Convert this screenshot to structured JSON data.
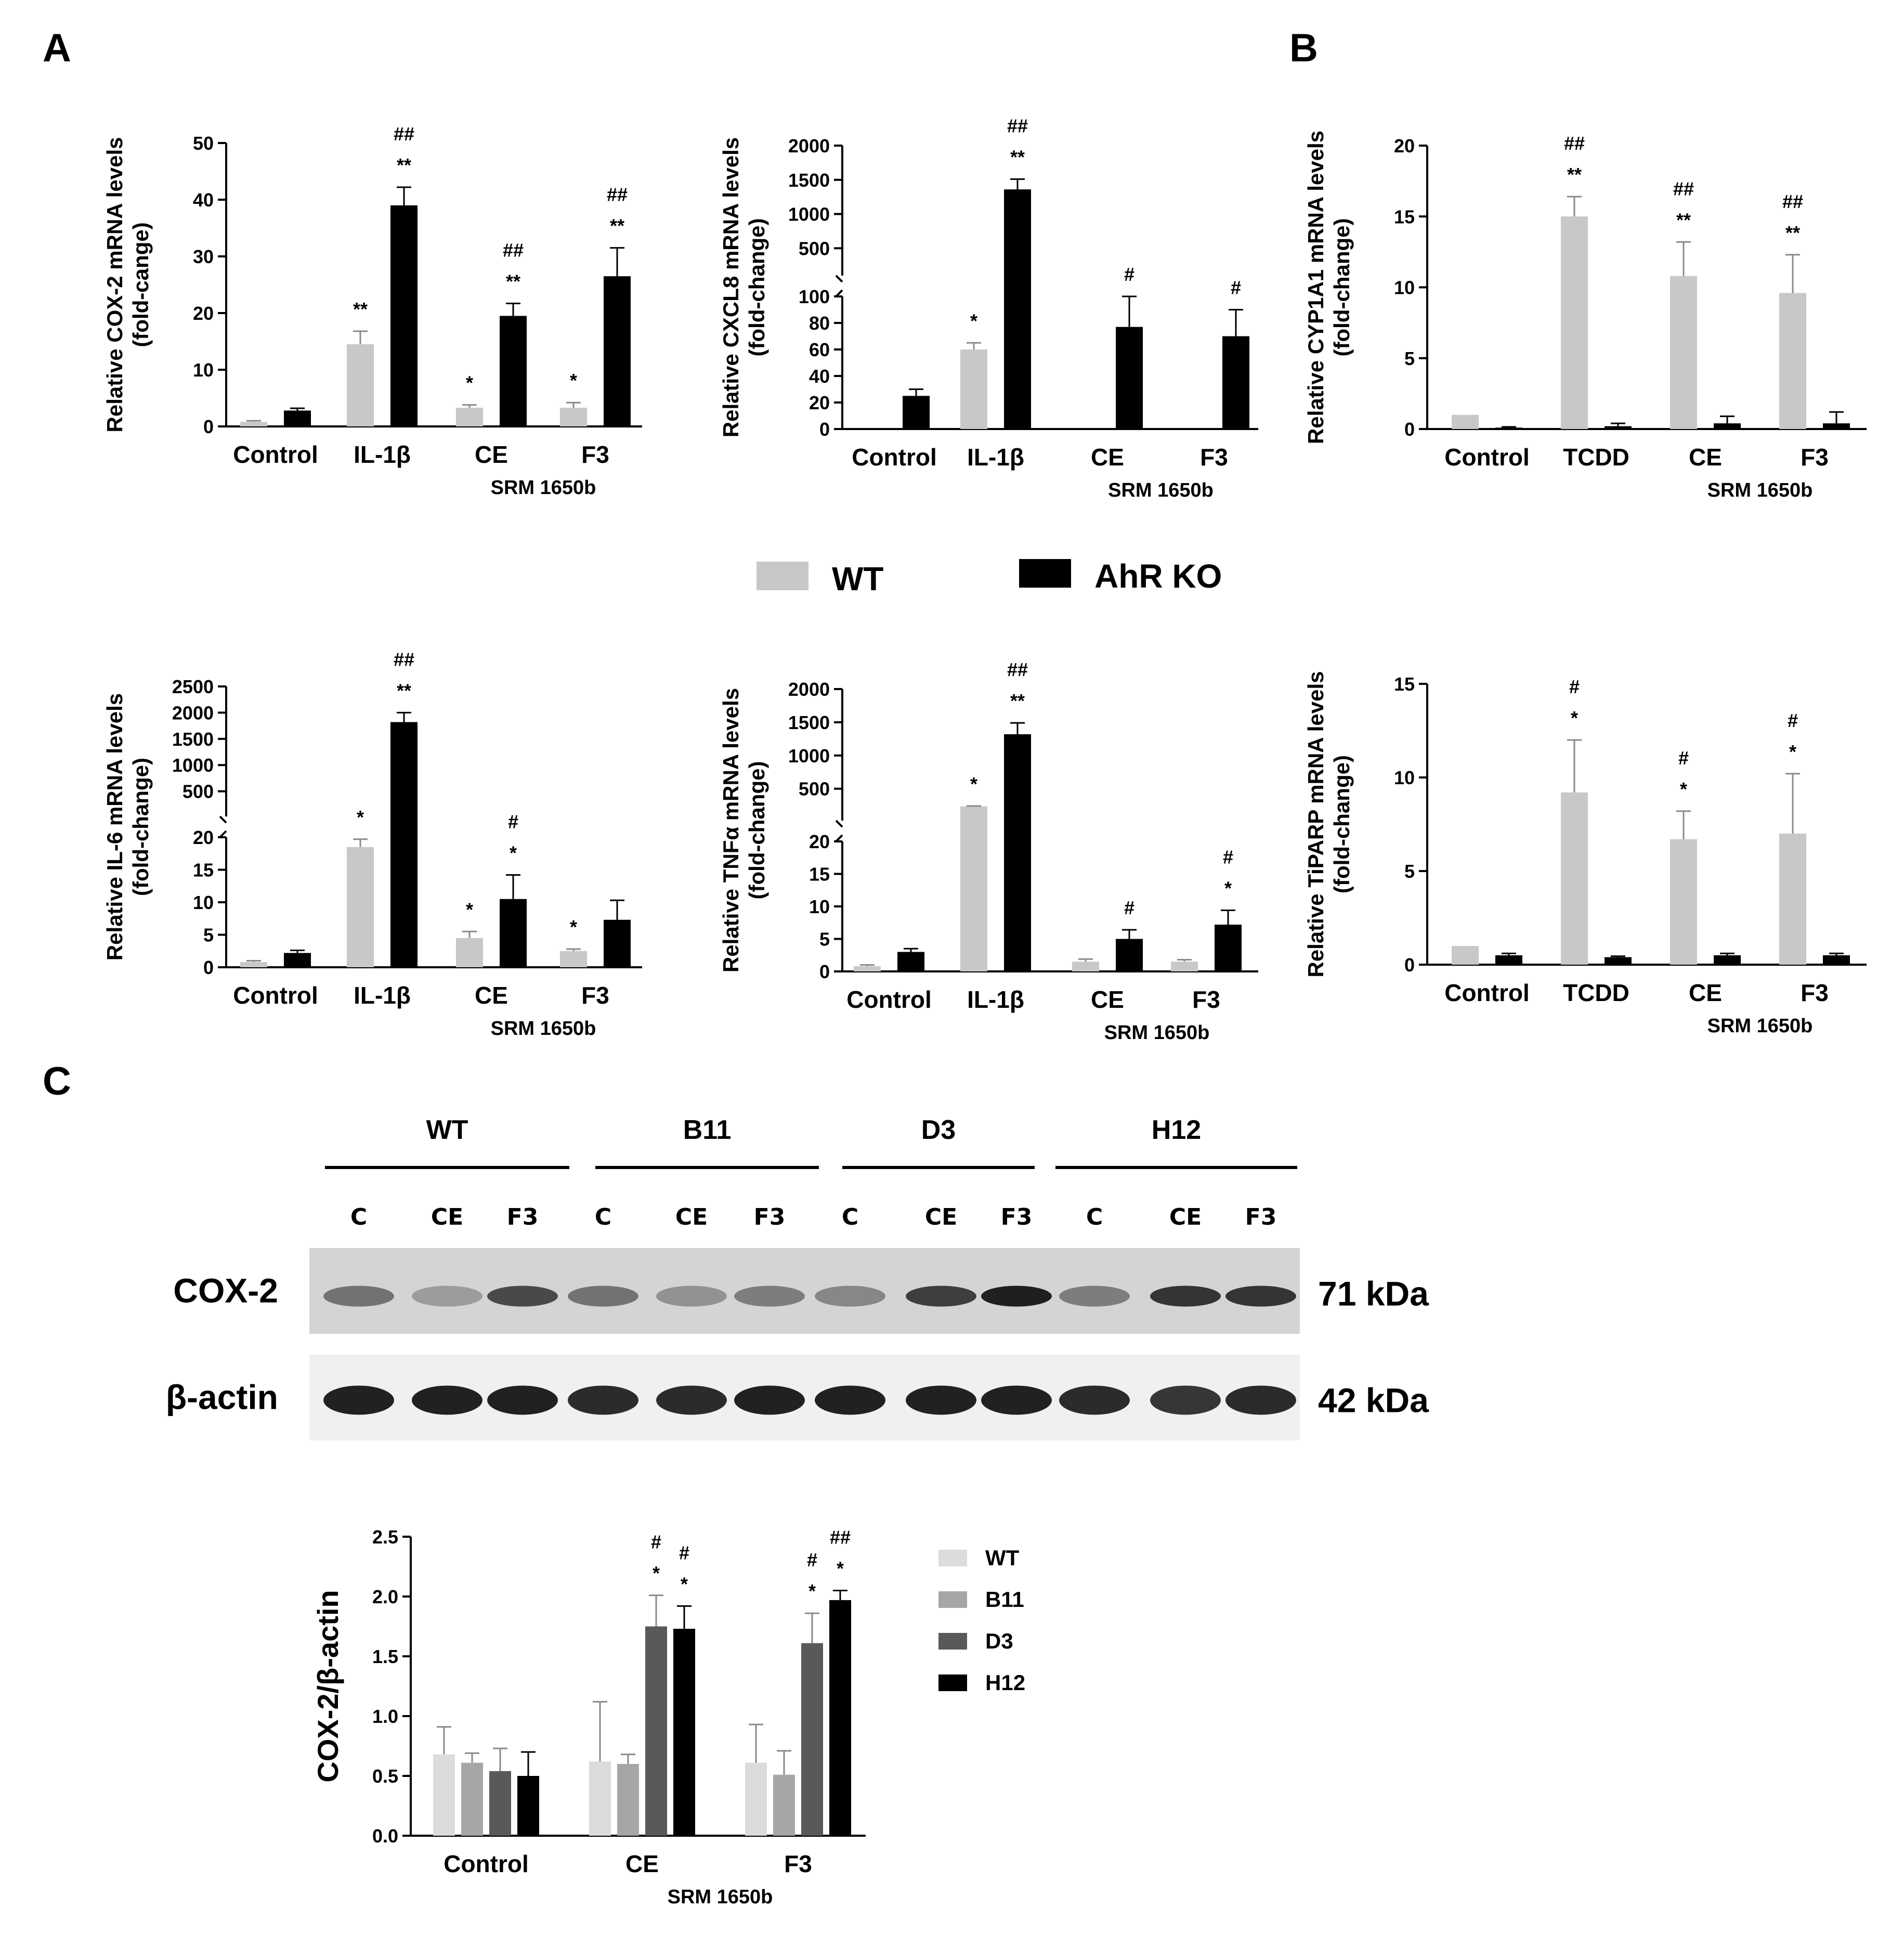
{
  "panel_letters": {
    "a": "A",
    "b": "B",
    "c": "C"
  },
  "main_legend": {
    "wt": "WT",
    "ko": "AhR KO"
  },
  "group_label": "SRM 1650b",
  "colors": {
    "wt": "#c8c8c8",
    "ko": "#000000",
    "wt_c": "#dcdcdc",
    "b11": "#a6a6a6",
    "d3": "#595959",
    "h12": "#000000"
  },
  "chart_data": [
    {
      "id": "cox2",
      "type": "bar",
      "ylabel": "Relative COX-2 mRNA levels\n(fold-cange)",
      "categories": [
        "Control",
        "IL-1β",
        "CE",
        "F3"
      ],
      "ylim": [
        0,
        50
      ],
      "yticks": [
        "0",
        "10",
        "20",
        "30",
        "40",
        "50"
      ],
      "series": [
        {
          "name": "WT",
          "values": [
            0.8,
            14.5,
            3.3,
            3.3
          ],
          "errors": [
            0.2,
            2.3,
            0.5,
            0.9
          ]
        },
        {
          "name": "AhR KO",
          "values": [
            2.8,
            39,
            19.5,
            26.5
          ],
          "errors": [
            0.4,
            3.2,
            2.2,
            5
          ]
        }
      ],
      "annotations": {
        "WT": [
          "",
          "**",
          "*",
          "*"
        ],
        "AhR KO": [
          "",
          "##\n**",
          "##\n**",
          "##\n**"
        ]
      }
    },
    {
      "id": "cxcl8",
      "type": "bar",
      "y_axis_break": true,
      "ylabel": "Relative CXCL8 mRNA levels\n(fold-change)",
      "categories": [
        "Control",
        "IL-1β",
        "CE",
        "F3"
      ],
      "ylim_lower": [
        0,
        100
      ],
      "ylim_upper": [
        100,
        2000
      ],
      "yticks": [
        "0",
        "20",
        "40",
        "60",
        "80",
        "100",
        "500",
        "1000",
        "1500",
        "2000"
      ],
      "series": [
        {
          "name": "WT",
          "values": [
            0,
            60,
            0,
            0
          ],
          "errors": [
            0,
            5,
            0,
            0
          ]
        },
        {
          "name": "AhR KO",
          "values": [
            25,
            1360,
            77,
            70
          ],
          "errors": [
            5,
            150,
            23,
            20
          ]
        }
      ],
      "annotations": {
        "WT": [
          "",
          "*",
          "",
          ""
        ],
        "AhR KO": [
          "",
          "##\n**",
          "#",
          "#"
        ]
      }
    },
    {
      "id": "il6",
      "type": "bar",
      "y_axis_break": true,
      "ylabel": "Relative IL-6 mRNA levels\n(fold-change)",
      "categories": [
        "Control",
        "IL-1β",
        "CE",
        "F3"
      ],
      "ylim_lower": [
        0,
        20
      ],
      "ylim_upper": [
        20,
        2500
      ],
      "yticks": [
        "0",
        "5",
        "10",
        "15",
        "20",
        "500",
        "1000",
        "1500",
        "2000",
        "2500"
      ],
      "series": [
        {
          "name": "WT",
          "values": [
            0.8,
            18.5,
            4.5,
            2.5
          ],
          "errors": [
            0.2,
            1.2,
            1,
            0.3
          ]
        },
        {
          "name": "AhR KO",
          "values": [
            2.2,
            1820,
            10.5,
            7.3
          ],
          "errors": [
            0.4,
            180,
            3.7,
            3
          ]
        }
      ],
      "annotations": {
        "WT": [
          "",
          "*",
          "*",
          "*"
        ],
        "AhR KO": [
          "",
          "##\n**",
          "#\n*",
          ""
        ]
      }
    },
    {
      "id": "tnfa",
      "type": "bar",
      "y_axis_break": true,
      "ylabel": "Relative TNFα mRNA levels\n(fold-change)",
      "categories": [
        "Control",
        "IL-1β",
        "CE",
        "F3"
      ],
      "ylim_lower": [
        0,
        20
      ],
      "ylim_upper": [
        20,
        2000
      ],
      "yticks": [
        "0",
        "5",
        "10",
        "15",
        "20",
        "500",
        "1000",
        "1500",
        "2000"
      ],
      "series": [
        {
          "name": "WT",
          "values": [
            0.8,
            235,
            1.5,
            1.5
          ],
          "errors": [
            0.2,
            5,
            0.4,
            0.3
          ]
        },
        {
          "name": "AhR KO",
          "values": [
            3,
            1320,
            5,
            7.2
          ],
          "errors": [
            0.5,
            170,
            1.4,
            2.2
          ]
        }
      ],
      "annotations": {
        "WT": [
          "",
          "*",
          "",
          ""
        ],
        "AhR KO": [
          "",
          "##\n**",
          "#",
          "#\n*"
        ]
      }
    },
    {
      "id": "cyp1a1",
      "type": "bar",
      "ylabel": "Relative CYP1A1 mRNA levels\n(fold-change)",
      "categories": [
        "Control",
        "TCDD",
        "CE",
        "F3"
      ],
      "ylim": [
        0,
        20
      ],
      "yticks": [
        "0",
        "5",
        "10",
        "15",
        "20"
      ],
      "series": [
        {
          "name": "WT",
          "values": [
            1,
            15,
            10.8,
            9.6
          ],
          "errors": [
            0,
            1.4,
            2.4,
            2.7
          ]
        },
        {
          "name": "AhR KO",
          "values": [
            0.1,
            0.2,
            0.4,
            0.4
          ],
          "errors": [
            0.05,
            0.2,
            0.5,
            0.8
          ]
        }
      ],
      "annotations": {
        "WT": [
          "",
          "##\n**",
          "##\n**",
          "##\n**"
        ],
        "AhR KO": [
          "",
          "",
          "",
          ""
        ]
      }
    },
    {
      "id": "tiparp",
      "type": "bar",
      "ylabel": "Relative TiPARP mRNA levels\n(fold-change)",
      "categories": [
        "Control",
        "TCDD",
        "CE",
        "F3"
      ],
      "ylim": [
        0,
        15
      ],
      "yticks": [
        "0",
        "5",
        "10",
        "15"
      ],
      "series": [
        {
          "name": "WT",
          "values": [
            1,
            9.2,
            6.7,
            7
          ],
          "errors": [
            0,
            2.8,
            1.5,
            3.2
          ]
        },
        {
          "name": "AhR KO",
          "values": [
            0.5,
            0.4,
            0.5,
            0.5
          ],
          "errors": [
            0.1,
            0.05,
            0.1,
            0.1
          ]
        }
      ],
      "annotations": {
        "WT": [
          "",
          "#\n*",
          "#\n*",
          "#\n*"
        ],
        "AhR KO": [
          "",
          "",
          "",
          ""
        ]
      }
    },
    {
      "id": "cox2_actin",
      "type": "bar",
      "ylabel": "COX-2/β-actin",
      "categories": [
        "Control",
        "CE",
        "F3"
      ],
      "ylim": [
        0,
        2.5
      ],
      "yticks": [
        "0.0",
        "0.5",
        "1.0",
        "1.5",
        "2.0",
        "2.5"
      ],
      "series": [
        {
          "name": "WT",
          "values": [
            0.68,
            0.62,
            0.61
          ],
          "errors": [
            0.23,
            0.5,
            0.32
          ]
        },
        {
          "name": "B11",
          "values": [
            0.61,
            0.6,
            0.51
          ],
          "errors": [
            0.08,
            0.08,
            0.2
          ]
        },
        {
          "name": "D3",
          "values": [
            0.54,
            1.75,
            1.61
          ],
          "errors": [
            0.19,
            0.26,
            0.25
          ]
        },
        {
          "name": "H12",
          "values": [
            0.5,
            1.73,
            1.97
          ],
          "errors": [
            0.2,
            0.19,
            0.08
          ]
        }
      ],
      "annotations": {
        "WT": [
          "",
          "",
          ""
        ],
        "B11": [
          "",
          "",
          ""
        ],
        "D3": [
          "",
          "#\n*",
          "#\n*"
        ],
        "H12": [
          "",
          "#\n*",
          "##\n*"
        ]
      }
    }
  ],
  "western_blot": {
    "groups": [
      "WT",
      "B11",
      "D3",
      "H12"
    ],
    "lanes": [
      "C",
      "CE",
      "F3",
      "C",
      "CE",
      "F3",
      "C",
      "CE",
      "F3",
      "C",
      "CE",
      "F3"
    ],
    "rows": [
      {
        "label": "COX-2",
        "kda": "71 kDa",
        "intensity": [
          0.55,
          0.35,
          0.75,
          0.55,
          0.4,
          0.5,
          0.45,
          0.8,
          0.95,
          0.5,
          0.85,
          0.85
        ]
      },
      {
        "label": "β-actin",
        "kda": "42 kDa",
        "intensity": [
          0.95,
          0.95,
          0.95,
          0.9,
          0.9,
          0.95,
          0.95,
          0.95,
          0.95,
          0.9,
          0.85,
          0.9
        ]
      }
    ]
  }
}
